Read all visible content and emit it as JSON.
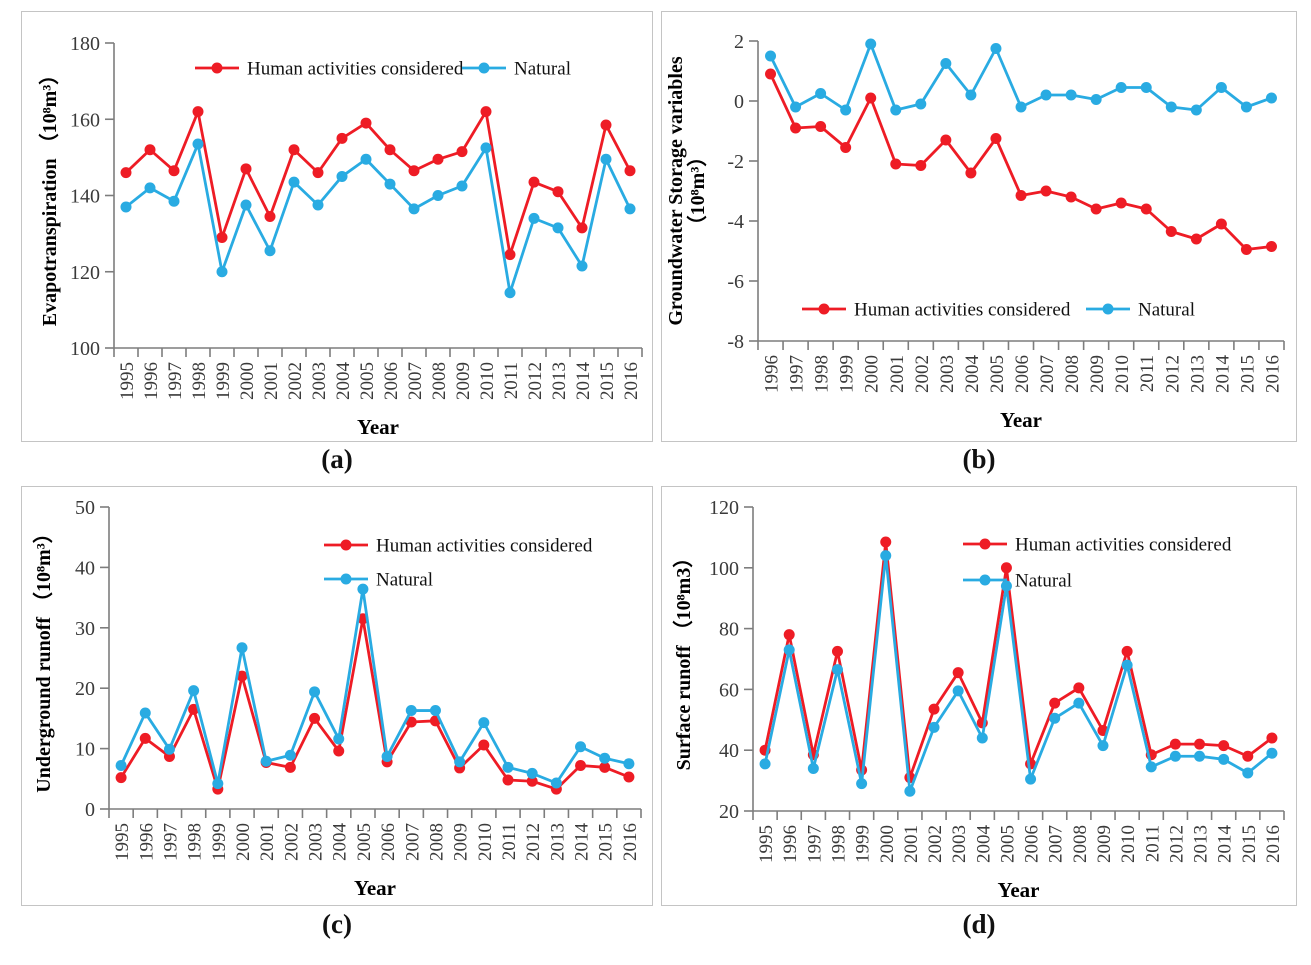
{
  "figure": {
    "background": "#ffffff",
    "colors": {
      "human": "#ee1c25",
      "natural": "#29abe2",
      "axis_line": "#7d7d7d",
      "tick_text": "#3a3a3a",
      "label_text": "#000000",
      "panel_border": "#c4c4c4"
    }
  },
  "chart_data": [
    {
      "id": "a",
      "caption": "(a)",
      "type": "line",
      "title": "",
      "xlabel": "Year",
      "ylabel_lines": [
        "Evapotranspiration （10⁸m³）"
      ],
      "categories": [
        "1995",
        "1996",
        "1997",
        "1998",
        "1999",
        "2000",
        "2001",
        "2002",
        "2003",
        "2004",
        "2005",
        "2006",
        "2007",
        "2008",
        "2009",
        "2010",
        "2011",
        "2012",
        "2013",
        "2014",
        "2015",
        "2016"
      ],
      "ylim": [
        100,
        180
      ],
      "yticks": [
        100,
        120,
        140,
        160,
        180
      ],
      "grid": false,
      "legend_position": "top-center-horizontal",
      "legend_entries": [
        "Human activities considered",
        "Natural"
      ],
      "series": [
        {
          "name": "Human activities considered",
          "color": "#ee1c25",
          "values": [
            146,
            152,
            146.5,
            162,
            129,
            147,
            134.5,
            152,
            146,
            155,
            159,
            152,
            146.5,
            149.5,
            151.5,
            162,
            124.5,
            143.5,
            141,
            131.5,
            158.5,
            146.5
          ]
        },
        {
          "name": "Natural",
          "color": "#29abe2",
          "values": [
            137,
            142,
            138.5,
            153.5,
            120,
            137.5,
            125.5,
            143.5,
            137.5,
            145,
            149.5,
            143,
            136.5,
            140,
            142.5,
            152.5,
            114.5,
            134,
            131.5,
            121.5,
            149.5,
            136.5
          ]
        }
      ]
    },
    {
      "id": "b",
      "caption": "(b)",
      "type": "line",
      "title": "",
      "xlabel": "Year",
      "ylabel_lines": [
        "Groundwater Storage variables",
        "（10⁸m³）"
      ],
      "categories": [
        "1996",
        "1997",
        "1998",
        "1999",
        "2000",
        "2001",
        "2002",
        "2003",
        "2004",
        "2005",
        "2006",
        "2007",
        "2008",
        "2009",
        "2010",
        "2011",
        "2012",
        "2013",
        "2014",
        "2015",
        "2016"
      ],
      "ylim": [
        -8,
        2
      ],
      "yticks": [
        -8,
        -6,
        -4,
        -2,
        0,
        2
      ],
      "grid": false,
      "legend_position": "bottom-center-horizontal",
      "legend_entries": [
        "Human activities considered",
        "Natural"
      ],
      "series": [
        {
          "name": "Human activities considered",
          "color": "#ee1c25",
          "values": [
            0.9,
            -0.9,
            -0.85,
            -1.55,
            0.1,
            -2.1,
            -2.15,
            -1.3,
            -2.4,
            -1.25,
            -3.15,
            -3.0,
            -3.2,
            -3.6,
            -3.4,
            -3.6,
            -4.35,
            -4.6,
            -4.1,
            -4.95,
            -4.85
          ]
        },
        {
          "name": "Natural",
          "color": "#29abe2",
          "values": [
            1.5,
            -0.2,
            0.25,
            -0.3,
            1.9,
            -0.3,
            -0.1,
            1.25,
            0.2,
            1.75,
            -0.2,
            0.2,
            0.2,
            0.05,
            0.45,
            0.45,
            -0.2,
            -0.3,
            0.45,
            -0.2,
            0.1
          ]
        }
      ]
    },
    {
      "id": "c",
      "caption": "(c)",
      "type": "line",
      "title": "",
      "xlabel": "Year",
      "ylabel_lines": [
        "Underground runoff （10⁸m³）"
      ],
      "categories": [
        "1995",
        "1996",
        "1997",
        "1998",
        "1999",
        "2000",
        "2001",
        "2002",
        "2003",
        "2004",
        "2005",
        "2006",
        "2007",
        "2008",
        "2009",
        "2010",
        "2011",
        "2012",
        "2013",
        "2014",
        "2015",
        "2016"
      ],
      "ylim": [
        0,
        50
      ],
      "yticks": [
        0,
        10,
        20,
        30,
        40,
        50
      ],
      "grid": false,
      "legend_position": "top-right-vertical",
      "legend_entries": [
        "Human activities considered",
        "Natural"
      ],
      "series": [
        {
          "name": "Human activities considered",
          "color": "#ee1c25",
          "values": [
            5.2,
            11.7,
            8.7,
            16.5,
            3.3,
            22,
            7.7,
            6.9,
            15,
            9.6,
            31.5,
            7.8,
            14.4,
            14.6,
            6.8,
            10.6,
            4.8,
            4.6,
            3.3,
            7.2,
            6.9,
            5.3
          ]
        },
        {
          "name": "Natural",
          "color": "#29abe2",
          "values": [
            7.2,
            15.9,
            9.9,
            19.6,
            4.2,
            26.7,
            7.9,
            8.9,
            19.4,
            11.6,
            36.4,
            8.7,
            16.3,
            16.3,
            7.8,
            14.3,
            6.9,
            5.9,
            4.3,
            10.3,
            8.4,
            7.5
          ]
        }
      ]
    },
    {
      "id": "d",
      "caption": "(d)",
      "type": "line",
      "title": "",
      "xlabel": "Year",
      "ylabel_lines": [
        "Surface runoff （10⁸m3）"
      ],
      "categories": [
        "1995",
        "1996",
        "1997",
        "1998",
        "1999",
        "2000",
        "2001",
        "2002",
        "2003",
        "2004",
        "2005",
        "2006",
        "2007",
        "2008",
        "2009",
        "2010",
        "2011",
        "2012",
        "2013",
        "2014",
        "2015",
        "2016"
      ],
      "ylim": [
        20,
        120
      ],
      "yticks": [
        20,
        40,
        60,
        80,
        100,
        120
      ],
      "grid": false,
      "legend_position": "top-right-vertical",
      "legend_entries": [
        "Human activities considered",
        "Natural"
      ],
      "series": [
        {
          "name": "Human activities considered",
          "color": "#ee1c25",
          "values": [
            40,
            78,
            38.5,
            72.5,
            33.5,
            108.5,
            31,
            53.5,
            65.5,
            49,
            100,
            35.5,
            55.5,
            60.5,
            46.5,
            72.5,
            38.5,
            42,
            42,
            41.5,
            38,
            44
          ]
        },
        {
          "name": "Natural",
          "color": "#29abe2",
          "values": [
            35.5,
            73,
            34,
            66.5,
            29,
            104,
            26.5,
            47.5,
            59.5,
            44,
            94,
            30.5,
            50.5,
            55.5,
            41.5,
            68,
            34.5,
            38,
            38,
            37,
            32.5,
            39
          ]
        }
      ]
    }
  ]
}
